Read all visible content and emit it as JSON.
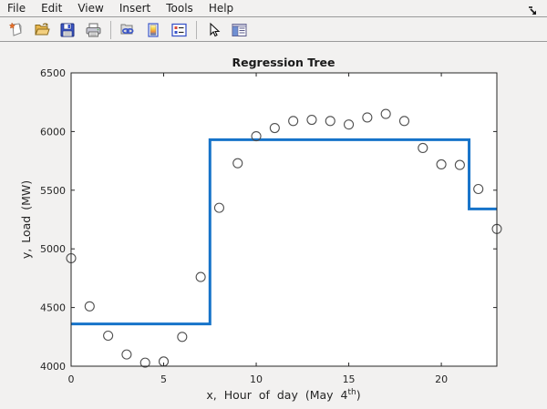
{
  "menu": {
    "items": [
      "File",
      "Edit",
      "View",
      "Insert",
      "Tools",
      "Help"
    ]
  },
  "toolbar": {
    "icons": [
      "new-figure-icon",
      "open-file-icon",
      "save-figure-icon",
      "print-figure-icon",
      "link-plot-icon",
      "insert-colorbar-icon",
      "insert-legend-icon",
      "edit-plot-icon",
      "plot-tools-icon"
    ]
  },
  "chart_data": {
    "type": "scatter",
    "title": "Regression Tree",
    "ylabel": "y,  Load (MW)",
    "xlabel": {
      "prefix": "x,  Hour of day (May 4",
      "sup": "th",
      "suffix": ")"
    },
    "xlim": [
      0,
      23
    ],
    "ylim": [
      4000,
      6500
    ],
    "xticks": [
      0,
      5,
      10,
      15,
      20
    ],
    "yticks": [
      4000,
      4500,
      5000,
      5500,
      6000,
      6500
    ],
    "grid": false,
    "box": true,
    "scatter": {
      "x": [
        0,
        1,
        2,
        3,
        4,
        5,
        6,
        7,
        8,
        9,
        10,
        11,
        12,
        13,
        14,
        15,
        16,
        17,
        18,
        19,
        20,
        21,
        22,
        23
      ],
      "y": [
        4920,
        4510,
        4260,
        4100,
        4030,
        4040,
        4250,
        4760,
        5350,
        5730,
        5960,
        6030,
        6090,
        6100,
        6090,
        6060,
        6120,
        6150,
        6090,
        5860,
        5720,
        5715,
        5510,
        5170
      ]
    },
    "step_line": {
      "name": "regression-tree-prediction",
      "segments": [
        {
          "x0": 0,
          "x1": 7.5,
          "y": 4360
        },
        {
          "x0": 7.5,
          "x1": 21.5,
          "y": 5930
        },
        {
          "x0": 21.5,
          "x1": 23,
          "y": 5340
        }
      ]
    },
    "colors": {
      "line": "#1673c9",
      "marker_edge": "#4f4f4f",
      "axis": "#262626",
      "plot_bg": "#ffffff",
      "figure_bg": "#f2f1f0",
      "text": "#262626"
    }
  }
}
